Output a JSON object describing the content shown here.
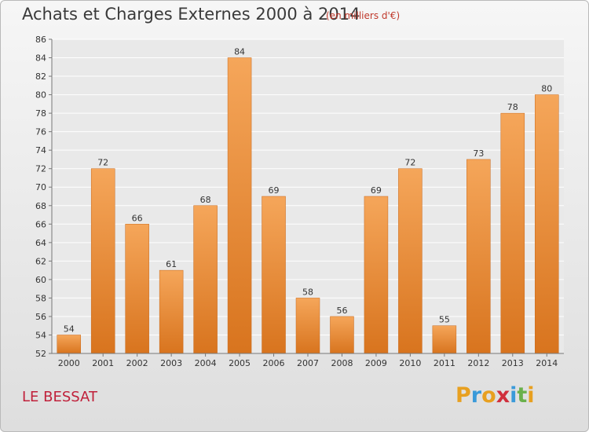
{
  "header": {
    "title": "Achats et Charges Externes 2000 à 2014",
    "subtitle": "(en milliers d'€)"
  },
  "footer": {
    "commune": "LE BESSAT",
    "logo_letters": [
      "P",
      "r",
      "o",
      "x",
      "i",
      "t",
      "i"
    ],
    "logo_colors": [
      "#e8a020",
      "#3a9ad9",
      "#e8a020",
      "#d02f3c",
      "#3a9ad9",
      "#6ab04c",
      "#e8a020"
    ]
  },
  "chart_data": {
    "type": "bar",
    "title": "Achats et Charges Externes 2000 à 2014",
    "subtitle": "(en milliers d'€)",
    "categories": [
      "2000",
      "2001",
      "2002",
      "2003",
      "2004",
      "2005",
      "2006",
      "2007",
      "2008",
      "2009",
      "2010",
      "2011",
      "2012",
      "2013",
      "2014"
    ],
    "values": [
      54,
      72,
      66,
      61,
      68,
      84,
      69,
      58,
      56,
      69,
      72,
      55,
      73,
      78,
      80
    ],
    "ylim": [
      52,
      86
    ],
    "yticks": [
      52,
      54,
      56,
      58,
      60,
      62,
      64,
      66,
      68,
      70,
      72,
      74,
      76,
      78,
      80,
      82,
      84,
      86
    ],
    "grid": true,
    "bar_color_top": "#f5a65a",
    "bar_color_bottom": "#d8741e"
  }
}
